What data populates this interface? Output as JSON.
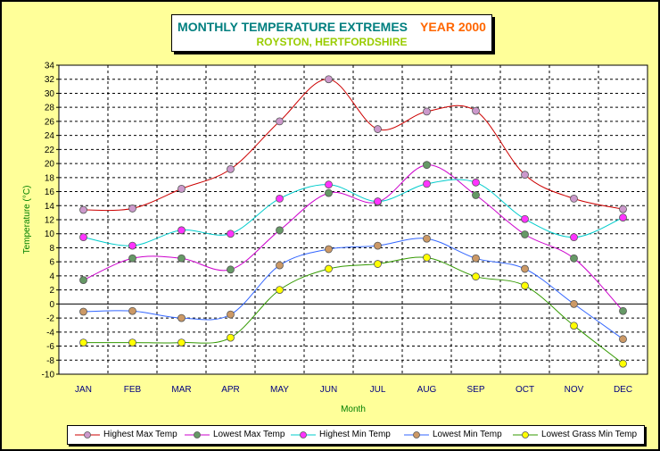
{
  "title": {
    "main": "MONTHLY TEMPERATURE EXTREMES",
    "year": "YEAR 2000",
    "subtitle": "ROYSTON, HERTFORDSHIRE"
  },
  "chart_data": {
    "type": "line",
    "categories": [
      "JAN",
      "FEB",
      "MAR",
      "APR",
      "MAY",
      "JUN",
      "JUL",
      "AUG",
      "SEP",
      "OCT",
      "NOV",
      "DEC"
    ],
    "xlabel": "Month",
    "ylabel": "Temperature (°C)",
    "ylim": [
      -10,
      34
    ],
    "yticks": [
      34,
      32,
      30,
      28,
      26,
      24,
      22,
      20,
      18,
      16,
      14,
      12,
      10,
      8,
      6,
      4,
      2,
      0,
      -2,
      -4,
      -6,
      -8,
      -10
    ],
    "grid": true,
    "legend_position": "bottom",
    "series": [
      {
        "name": "Highest Max Temp",
        "line_color": "#cc0000",
        "marker_color": "#cc99cc",
        "values": [
          13.4,
          13.6,
          16.4,
          19.2,
          26.0,
          32.0,
          24.9,
          27.4,
          27.5,
          18.4,
          15.0,
          13.5
        ]
      },
      {
        "name": "Lowest Max Temp",
        "line_color": "#cc00cc",
        "marker_color": "#669966",
        "values": [
          3.4,
          6.5,
          6.5,
          4.9,
          10.5,
          15.8,
          14.5,
          19.8,
          15.5,
          9.9,
          6.5,
          -1.0
        ]
      },
      {
        "name": "Highest Min Temp",
        "line_color": "#00cccc",
        "marker_color": "#ff33ff",
        "values": [
          9.5,
          8.3,
          10.5,
          10.0,
          15.0,
          17.0,
          14.6,
          17.1,
          17.3,
          12.1,
          9.5,
          12.3
        ]
      },
      {
        "name": "Lowest Min Temp",
        "line_color": "#3366ff",
        "marker_color": "#cc9966",
        "values": [
          -1.1,
          -1.0,
          -2.0,
          -1.5,
          5.5,
          7.8,
          8.3,
          9.3,
          6.5,
          5.0,
          0.0,
          -5.0
        ]
      },
      {
        "name": "Lowest Grass Min Temp",
        "line_color": "#339900",
        "marker_color": "#ffff00",
        "values": [
          -5.5,
          -5.5,
          -5.5,
          -4.8,
          2.0,
          5.0,
          5.7,
          6.6,
          3.9,
          2.6,
          -3.1,
          -8.5
        ]
      }
    ]
  }
}
